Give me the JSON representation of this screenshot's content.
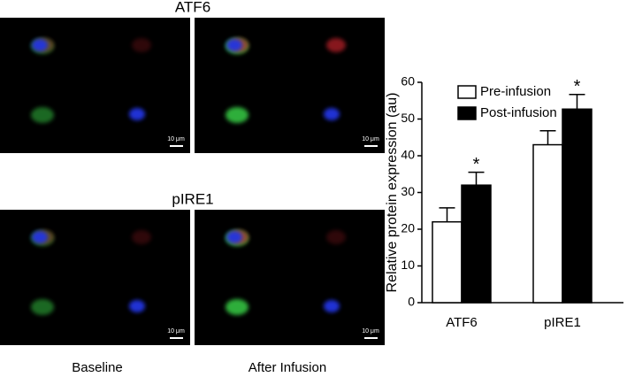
{
  "panels": {
    "titles": [
      "ATF6",
      "pIRE1"
    ],
    "columns": [
      "Baseline",
      "After Infusion"
    ],
    "scale_bar": "10 μm"
  },
  "chart_data": {
    "type": "bar",
    "ylabel": "Relative protein expression (au)",
    "categories": [
      "ATF6",
      "pIRE1"
    ],
    "series": [
      {
        "name": "Pre-infusion",
        "color": "#ffffff",
        "values": [
          22,
          43
        ],
        "errors": [
          3.8,
          3.8
        ]
      },
      {
        "name": "Post-infusion",
        "color": "#000000",
        "values": [
          32,
          52.7
        ],
        "errors": [
          3.5,
          4
        ]
      }
    ],
    "annotations": [
      "*",
      "*"
    ],
    "ylim": [
      0,
      60
    ],
    "yticks": [
      0,
      10,
      20,
      30,
      40,
      50,
      60
    ],
    "legend": "upper left"
  }
}
